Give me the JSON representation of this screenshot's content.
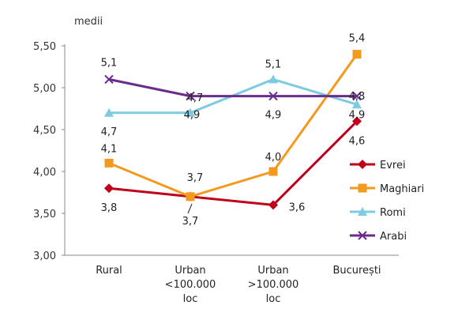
{
  "chart_data": {
    "type": "line",
    "ylabel": "medii",
    "ylim": [
      3.0,
      5.5
    ],
    "yticks": [
      "3,00",
      "3,50",
      "4,00",
      "4,50",
      "5,00",
      "5,50"
    ],
    "categories": [
      [
        "Rural"
      ],
      [
        "Urban",
        "<100.000",
        "loc"
      ],
      [
        "Urban",
        ">100.000",
        "loc"
      ],
      [
        "București"
      ]
    ],
    "grid": false,
    "legend_position": "right",
    "series": [
      {
        "name": "Evrei",
        "color": "#c0001a",
        "marker": "diamond",
        "values": [
          3.8,
          3.7,
          3.6,
          4.6
        ],
        "labels": [
          "3,8",
          "3,7",
          "3,6",
          "4,6"
        ]
      },
      {
        "name": "Maghiari",
        "color": "#f39a1e",
        "marker": "square",
        "values": [
          4.1,
          3.7,
          4.0,
          5.4
        ],
        "labels": [
          "4,1",
          "3,7",
          "4,0",
          "5,4"
        ]
      },
      {
        "name": "Romi",
        "color": "#7ccbe0",
        "marker": "triangle",
        "values": [
          4.7,
          4.7,
          5.1,
          4.8
        ],
        "labels": [
          "4,7",
          "4,7",
          "5,1",
          "4,8"
        ]
      },
      {
        "name": "Arabi",
        "color": "#6a2c8c",
        "marker": "x",
        "values": [
          5.1,
          4.9,
          4.9,
          4.9
        ],
        "labels": [
          "5,1",
          "4,9",
          "4,9",
          "4,9"
        ]
      }
    ]
  }
}
